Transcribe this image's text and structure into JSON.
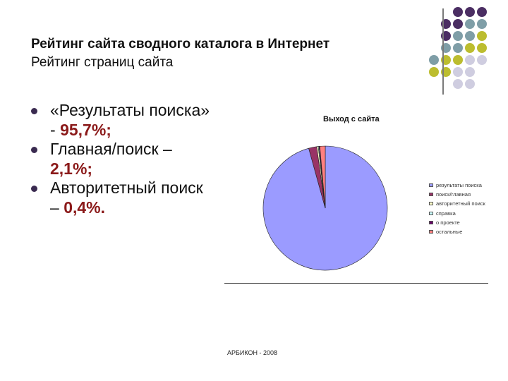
{
  "slide": {
    "title": "Рейтинг сайта сводного каталога в Интернет",
    "subtitle": "Рейтинг страниц сайта",
    "bullets": [
      {
        "text": "«Результаты поиска» - ",
        "value": "95,7%;"
      },
      {
        "text": "Главная/поиск – ",
        "value": "2,1%;"
      },
      {
        "text": "Авторитетный поиск – ",
        "value": "0,4%."
      }
    ],
    "footer": "АРБИКОН - 2008"
  },
  "decor": {
    "dot_colors": {
      "purple": "#4b2e63",
      "teal": "#7f9ea7",
      "olive": "#bcbd2f",
      "lavender": "#cfcde0"
    }
  },
  "chart_data": {
    "type": "pie",
    "title": "Выход с сайта",
    "series": [
      {
        "name": "результаты поиска",
        "value": 95.7,
        "color": "#9b9bff"
      },
      {
        "name": "поиск/главная",
        "value": 2.1,
        "color": "#993366"
      },
      {
        "name": "авторитетный поиск",
        "value": 0.4,
        "color": "#ffffcc"
      },
      {
        "name": "справка",
        "value": 0.2,
        "color": "#ccffff"
      },
      {
        "name": "о проекте",
        "value": 0.2,
        "color": "#660066"
      },
      {
        "name": "остальные",
        "value": 1.4,
        "color": "#ff8080"
      }
    ],
    "legend_position": "right"
  }
}
